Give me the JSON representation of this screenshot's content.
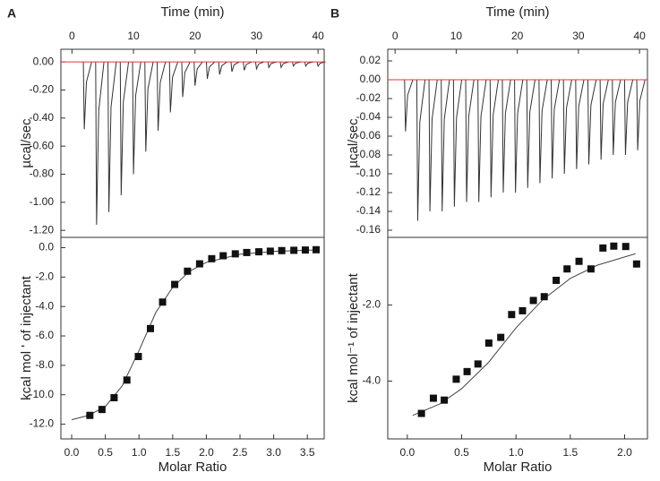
{
  "chart_data": [
    {
      "type": "spikes",
      "panel": "A",
      "x_label": "Time (min)",
      "y_label": "µcal/sec",
      "x": [
        2,
        4,
        6,
        8,
        10,
        12,
        14,
        16,
        18,
        20,
        22,
        24,
        26,
        28,
        30,
        32,
        34,
        36,
        38,
        40
      ],
      "values": [
        -0.48,
        -1.16,
        -1.07,
        -0.95,
        -0.8,
        -0.64,
        -0.49,
        -0.36,
        -0.25,
        -0.17,
        -0.12,
        -0.09,
        -0.07,
        -0.06,
        -0.05,
        -0.04,
        -0.04,
        -0.03,
        -0.03,
        -0.03
      ],
      "color": "#333333",
      "baseline": 0,
      "baseline_color": "#e8303a",
      "xlim": [
        -1.8,
        41
      ],
      "ylim": [
        -1.25,
        0.09
      ],
      "xticks": [
        0,
        10,
        20,
        30,
        40
      ],
      "yticks": [
        {
          "value": 0,
          "label": "0.00"
        },
        {
          "value": -0.2,
          "label": "-0.20"
        },
        {
          "value": -0.4,
          "label": "-0.40"
        },
        {
          "value": -0.6,
          "label": "-0.60"
        },
        {
          "value": -0.8,
          "label": "-0.80"
        },
        {
          "value": -1.0,
          "label": "-1.00"
        },
        {
          "value": -1.2,
          "label": "-1.20"
        }
      ]
    },
    {
      "type": "scatter",
      "x_label": "Molar Ratio",
      "y_label": "kcal mol ' of injectant",
      "points": {
        "color": "#111111",
        "x": [
          0.27,
          0.45,
          0.63,
          0.82,
          0.99,
          1.17,
          1.35,
          1.53,
          1.72,
          1.9,
          2.08,
          2.25,
          2.43,
          2.6,
          2.78,
          2.95,
          3.12,
          3.3,
          3.47,
          3.63
        ],
        "values": [
          -11.4,
          -11.0,
          -10.2,
          -9.0,
          -7.4,
          -5.5,
          -3.7,
          -2.5,
          -1.6,
          -1.1,
          -0.75,
          -0.55,
          -0.42,
          -0.33,
          -0.28,
          -0.24,
          -0.2,
          -0.18,
          -0.16,
          -0.14
        ]
      },
      "fit": {
        "color": "#444444",
        "x": [
          0.0,
          0.25,
          0.5,
          0.75,
          1.0,
          1.25,
          1.5,
          1.75,
          2.0,
          2.5,
          3.0,
          3.65
        ],
        "values": [
          -11.7,
          -11.4,
          -10.8,
          -9.4,
          -7.0,
          -4.4,
          -2.7,
          -1.6,
          -1.0,
          -0.45,
          -0.25,
          -0.15
        ]
      },
      "xlim": [
        -0.16,
        3.75
      ],
      "ylim": [
        -13.0,
        0.7
      ],
      "xticks": [
        {
          "value": 0,
          "label": "0.0"
        },
        {
          "value": 0.5,
          "label": "0.5"
        },
        {
          "value": 1,
          "label": "1.0"
        },
        {
          "value": 1.5,
          "label": "1.5"
        },
        {
          "value": 2,
          "label": "2.0"
        },
        {
          "value": 2.5,
          "label": "2.5"
        },
        {
          "value": 3,
          "label": "3.0"
        },
        {
          "value": 3.5,
          "label": "3.5"
        }
      ],
      "yticks": [
        {
          "value": 0,
          "label": "0.0"
        },
        {
          "value": -2,
          "label": "-2.0"
        },
        {
          "value": -4,
          "label": "-4.0"
        },
        {
          "value": -6,
          "label": "-6.0"
        },
        {
          "value": -8,
          "label": "-8.0"
        },
        {
          "value": -10,
          "label": "-10.0"
        },
        {
          "value": -12,
          "label": "-12.0"
        }
      ]
    },
    {
      "type": "spikes",
      "panel": "B",
      "x_label": "Time (min)",
      "y_label": "µcal/sec",
      "x": [
        1.7,
        3.7,
        5.7,
        7.7,
        9.7,
        11.7,
        13.7,
        15.7,
        17.7,
        19.7,
        21.7,
        23.7,
        25.7,
        27.7,
        29.7,
        31.7,
        33.7,
        35.7,
        37.7,
        39.7
      ],
      "values": [
        -0.055,
        -0.15,
        -0.14,
        -0.14,
        -0.135,
        -0.13,
        -0.13,
        -0.125,
        -0.12,
        -0.12,
        -0.115,
        -0.11,
        -0.105,
        -0.1,
        -0.095,
        -0.09,
        -0.085,
        -0.08,
        -0.08,
        -0.075
      ],
      "color": "#333333",
      "baseline": 0,
      "baseline_color": "#e8303a",
      "xlim": [
        -1.2,
        41.3
      ],
      "ylim": [
        -0.1676,
        0.0324
      ],
      "xticks": [
        0,
        10,
        20,
        30,
        40
      ],
      "yticks": [
        {
          "value": 0.02,
          "label": "0.02"
        },
        {
          "value": 0,
          "label": "0.00"
        },
        {
          "value": -0.02,
          "label": "-0.02"
        },
        {
          "value": -0.04,
          "label": "-0.04"
        },
        {
          "value": -0.06,
          "label": "-0.06"
        },
        {
          "value": -0.08,
          "label": "-0.08"
        },
        {
          "value": -0.1,
          "label": "-0.10"
        },
        {
          "value": -0.12,
          "label": "-0.12"
        },
        {
          "value": -0.14,
          "label": "-0.14"
        },
        {
          "value": -0.16,
          "label": "-0.16"
        }
      ]
    },
    {
      "type": "scatter",
      "x_label": "Molar Ratio",
      "y_label": "kcal mol⁻¹ of injectant",
      "points": {
        "color": "#111111",
        "x": [
          0.13,
          0.24,
          0.34,
          0.45,
          0.55,
          0.65,
          0.75,
          0.86,
          0.96,
          1.06,
          1.16,
          1.26,
          1.37,
          1.47,
          1.58,
          1.69,
          1.8,
          1.9,
          2.01,
          2.11
        ],
        "values": [
          -4.85,
          -4.45,
          -4.5,
          -3.95,
          -3.75,
          -3.55,
          -3.0,
          -2.85,
          -2.25,
          -2.15,
          -1.88,
          -1.78,
          -1.35,
          -1.05,
          -0.85,
          -1.05,
          -0.5,
          -0.45,
          -0.46,
          -0.92
        ]
      },
      "fit": {
        "color": "#444444",
        "x": [
          0.05,
          0.3,
          0.5,
          0.75,
          1.0,
          1.25,
          1.5,
          1.75,
          2.1
        ],
        "values": [
          -4.9,
          -4.6,
          -4.2,
          -3.5,
          -2.6,
          -1.85,
          -1.3,
          -0.95,
          -0.65
        ]
      },
      "xlim": [
        -0.18,
        2.21
      ],
      "ylim": [
        -5.52,
        -0.22
      ],
      "xticks": [
        {
          "value": 0,
          "label": "0.0"
        },
        {
          "value": 0.5,
          "label": "0.5"
        },
        {
          "value": 1,
          "label": "1.0"
        },
        {
          "value": 1.5,
          "label": "1.5"
        },
        {
          "value": 2,
          "label": "2.0"
        }
      ],
      "yticks": [
        {
          "value": -2,
          "label": "-2.0"
        },
        {
          "value": -4,
          "label": "-4.0"
        }
      ]
    }
  ]
}
